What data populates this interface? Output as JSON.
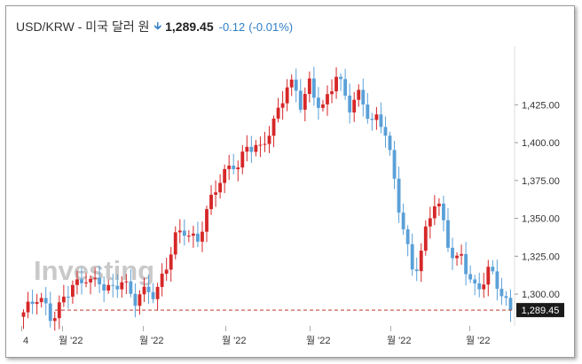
{
  "header": {
    "pair": "USD/KRW - 미국 달러 원",
    "arrow_icon": "down-arrow-icon",
    "price": "1,289.45",
    "change": "-0.12",
    "change_pct": "(-0.01%)"
  },
  "colors": {
    "up": "#d62728",
    "down": "#5aa0d8",
    "accent": "#2e7ec8",
    "last_line": "#c0392b"
  },
  "watermark": "Investing",
  "chart_data": {
    "type": "candlestick",
    "title": "",
    "xlabel": "",
    "ylabel": "",
    "ylim": [
      1279,
      1462
    ],
    "y_ticks": [
      "1,300.00",
      "1,325.00",
      "1,350.00",
      "1,375.00",
      "1,400.00",
      "1,425.00"
    ],
    "y_tick_values": [
      1300,
      1325,
      1350,
      1375,
      1400,
      1425
    ],
    "x_ticks": [
      "4",
      "월 '22",
      "월 '22",
      "월 '22",
      "월 '22",
      "월 '22",
      "월 '22"
    ],
    "last_price_label": "1,289.45",
    "last_price": 1289.45,
    "grid": false,
    "close_path": [
      1288,
      1290,
      1296,
      1292,
      1286,
      1293,
      1300,
      1305,
      1302,
      1310,
      1308,
      1312,
      1305,
      1303,
      1307,
      1300,
      1296,
      1303,
      1306,
      1299,
      1310,
      1322,
      1338,
      1345,
      1340,
      1337,
      1348,
      1360,
      1372,
      1380,
      1390,
      1386,
      1398,
      1395,
      1392,
      1404,
      1415,
      1430,
      1440,
      1435,
      1420,
      1438,
      1430,
      1425,
      1436,
      1445,
      1430,
      1420,
      1432,
      1428,
      1415,
      1418,
      1405,
      1380,
      1355,
      1335,
      1318,
      1325,
      1345,
      1358,
      1352,
      1335,
      1322,
      1330,
      1310,
      1300,
      1305,
      1316,
      1310,
      1300,
      1289.45
    ]
  }
}
